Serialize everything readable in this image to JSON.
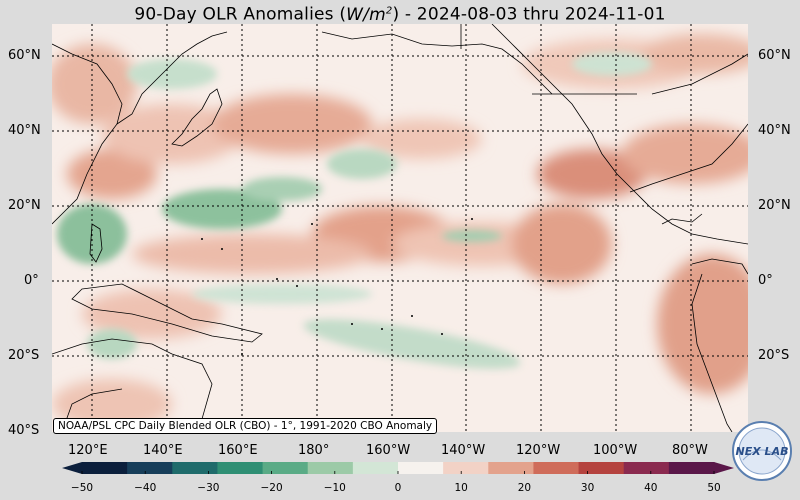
{
  "title": {
    "prefix": "90-Day OLR Anomalies (",
    "unit_base": "W/m",
    "unit_exp": "2",
    "suffix": ") - 2024-08-03 thru 2024-11-01"
  },
  "lat_labels": [
    "60°N",
    "40°N",
    "20°N",
    "0°",
    "20°S",
    "40°S"
  ],
  "lon_labels": [
    "120°E",
    "140°E",
    "160°E",
    "180°",
    "160°W",
    "140°W",
    "120°W",
    "100°W",
    "80°W"
  ],
  "credit": "NOAA/PSL CPC Daily Blended OLR (CBO) - 1°, 1991-2020 CBO Anomaly",
  "colorbar": {
    "ticks": [
      "−50",
      "−40",
      "−30",
      "−20",
      "−10",
      "0",
      "10",
      "20",
      "30",
      "40",
      "50"
    ],
    "colors": [
      "#0b1f3c",
      "#173e5a",
      "#1f6b6b",
      "#2f8f74",
      "#5aab86",
      "#9ccaa7",
      "#d3e6d6",
      "#f6f2ee",
      "#f2d2c6",
      "#e3a28c",
      "#cf6c5a",
      "#b5433f",
      "#8a2a4f",
      "#5a1749"
    ]
  },
  "logo": {
    "text": "NEX LAB"
  },
  "map_colors": {
    "ocean": "#f8eee9",
    "warm_mid": "#e8b3a0",
    "warm_strong": "#d57f6b",
    "cool_mid": "#a8ceb1",
    "cool_strong": "#5fa47f"
  }
}
